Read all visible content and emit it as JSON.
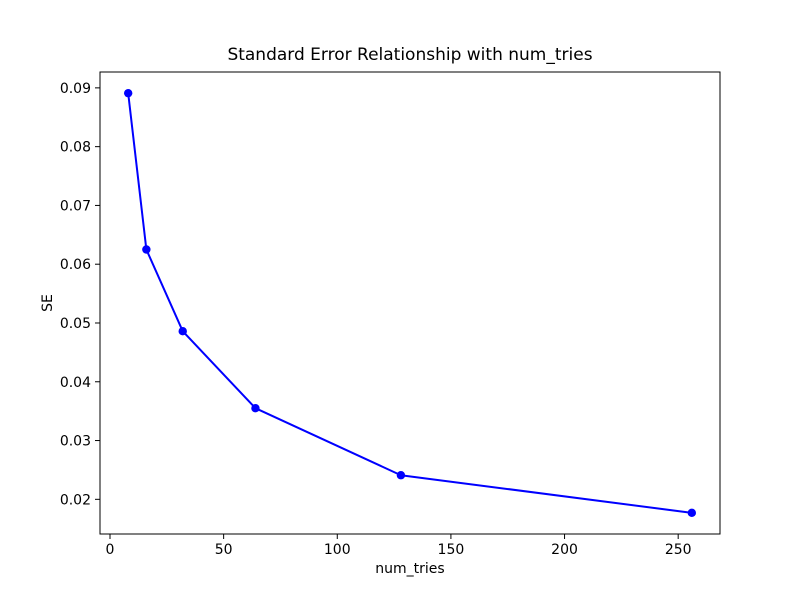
{
  "figure": {
    "background": "#ffffff"
  },
  "chart_data": {
    "type": "line",
    "title": "Standard Error Relationship with num_tries",
    "xlabel": "num_tries",
    "ylabel": "SE",
    "x": [
      8,
      16,
      32,
      64,
      128,
      256
    ],
    "y": [
      0.0891,
      0.0625,
      0.0486,
      0.0355,
      0.0241,
      0.0177
    ],
    "xlim": [
      -4.4,
      268.4
    ],
    "ylim": [
      0.0141,
      0.0927
    ],
    "xticks": [
      0,
      50,
      100,
      150,
      200,
      250
    ],
    "xtick_labels": [
      "0",
      "50",
      "100",
      "150",
      "200",
      "250"
    ],
    "yticks": [
      0.02,
      0.03,
      0.04,
      0.05,
      0.06,
      0.07,
      0.08,
      0.09
    ],
    "ytick_labels": [
      "0.02",
      "0.03",
      "0.04",
      "0.05",
      "0.06",
      "0.07",
      "0.08",
      "0.09"
    ],
    "line_color": "#0000ff",
    "marker": "o",
    "grid": false,
    "legend_position": "none"
  }
}
